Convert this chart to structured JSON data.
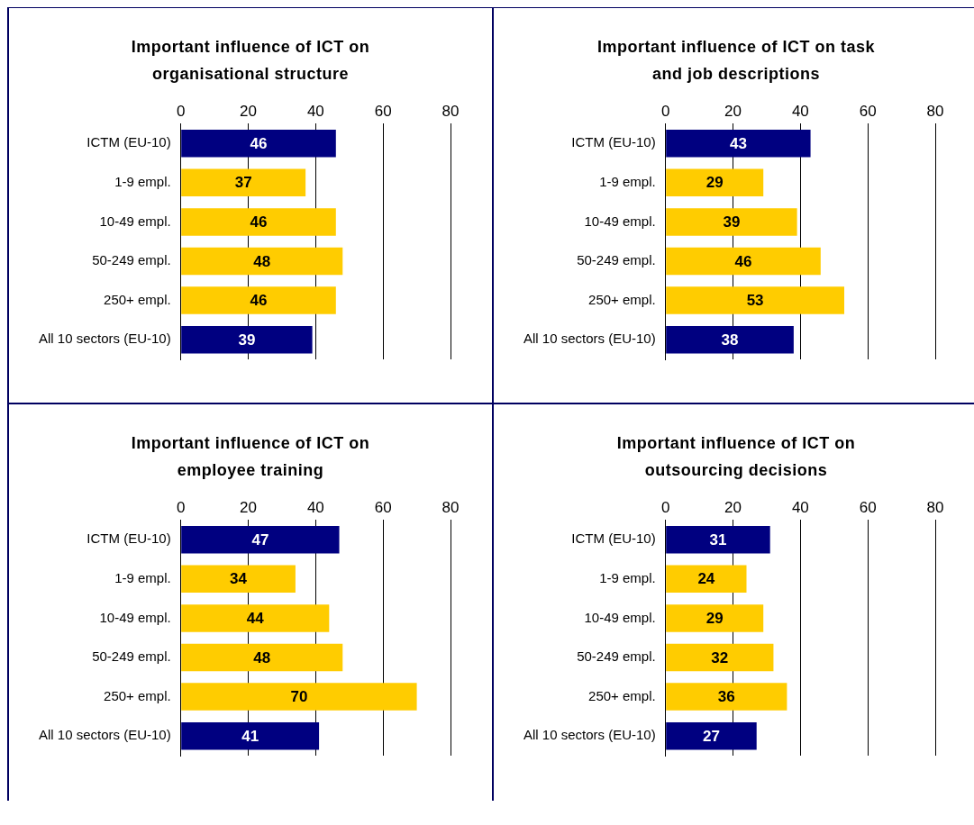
{
  "chart_data": [
    {
      "type": "bar",
      "orientation": "horizontal",
      "title": "Important influence of ICT on organisational structure",
      "categories": [
        "ICTM (EU-10)",
        "1-9 empl.",
        "10-49 empl.",
        "50-249 empl.",
        "250+ empl.",
        "All 10 sectors (EU-10)"
      ],
      "values": [
        46,
        37,
        46,
        48,
        46,
        39
      ],
      "colors": [
        "#000080",
        "#ffcc00",
        "#ffcc00",
        "#ffcc00",
        "#ffcc00",
        "#000080"
      ],
      "xlim": [
        0,
        80
      ],
      "xticks": [
        0,
        20,
        40,
        60,
        80
      ],
      "grid": "x",
      "data_labels": true,
      "legend": false
    },
    {
      "type": "bar",
      "orientation": "horizontal",
      "title": "Important influence of ICT on task and job descriptions",
      "categories": [
        "ICTM (EU-10)",
        "1-9 empl.",
        "10-49 empl.",
        "50-249 empl.",
        "250+ empl.",
        "All 10 sectors (EU-10)"
      ],
      "values": [
        43,
        29,
        39,
        46,
        53,
        38
      ],
      "colors": [
        "#000080",
        "#ffcc00",
        "#ffcc00",
        "#ffcc00",
        "#ffcc00",
        "#000080"
      ],
      "xlim": [
        0,
        80
      ],
      "xticks": [
        0,
        20,
        40,
        60,
        80
      ],
      "grid": "x",
      "data_labels": true,
      "legend": false
    },
    {
      "type": "bar",
      "orientation": "horizontal",
      "title": "Important influence of ICT on employee training",
      "categories": [
        "ICTM (EU-10)",
        "1-9 empl.",
        "10-49 empl.",
        "50-249 empl.",
        "250+ empl.",
        "All 10 sectors (EU-10)"
      ],
      "values": [
        47,
        34,
        44,
        48,
        70,
        41
      ],
      "colors": [
        "#000080",
        "#ffcc00",
        "#ffcc00",
        "#ffcc00",
        "#ffcc00",
        "#000080"
      ],
      "xlim": [
        0,
        80
      ],
      "xticks": [
        0,
        20,
        40,
        60,
        80
      ],
      "grid": "x",
      "data_labels": true,
      "legend": false
    },
    {
      "type": "bar",
      "orientation": "horizontal",
      "title": "Important influence of ICT on outsourcing decisions",
      "categories": [
        "ICTM (EU-10)",
        "1-9 empl.",
        "10-49 empl.",
        "50-249 empl.",
        "250+ empl.",
        "All 10 sectors (EU-10)"
      ],
      "values": [
        31,
        24,
        29,
        32,
        36,
        27
      ],
      "colors": [
        "#000080",
        "#ffcc00",
        "#ffcc00",
        "#ffcc00",
        "#ffcc00",
        "#000080"
      ],
      "xlim": [
        0,
        80
      ],
      "xticks": [
        0,
        20,
        40,
        60,
        80
      ],
      "grid": "x",
      "data_labels": true,
      "legend": false
    }
  ]
}
